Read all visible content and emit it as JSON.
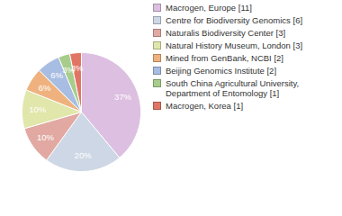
{
  "chart_data": {
    "type": "pie",
    "categories": [
      "Macrogen, Europe [11]",
      "Centre for Biodiversity Genomics [6]",
      "Naturalis Biodiversity Center [3]",
      "Natural History Museum, London [3]",
      "Mined from GenBank, NCBI [2]",
      "Beijing Genomics Institute [2]",
      "South China Agricultural University, Department of Entomology [1]",
      "Macrogen, Korea [1]"
    ],
    "values": [
      37,
      20,
      10,
      10,
      6,
      6,
      3,
      3
    ],
    "value_labels": [
      "37%",
      "20%",
      "10%",
      "10%",
      "6%",
      "6%",
      "3%",
      "3%"
    ],
    "colors": [
      "#dcbfe1",
      "#cdd7e5",
      "#e1a9a2",
      "#e1e6aa",
      "#efb27e",
      "#a8bde2",
      "#a7cc8b",
      "#e07565"
    ],
    "data_labels": true,
    "legend": "right"
  }
}
